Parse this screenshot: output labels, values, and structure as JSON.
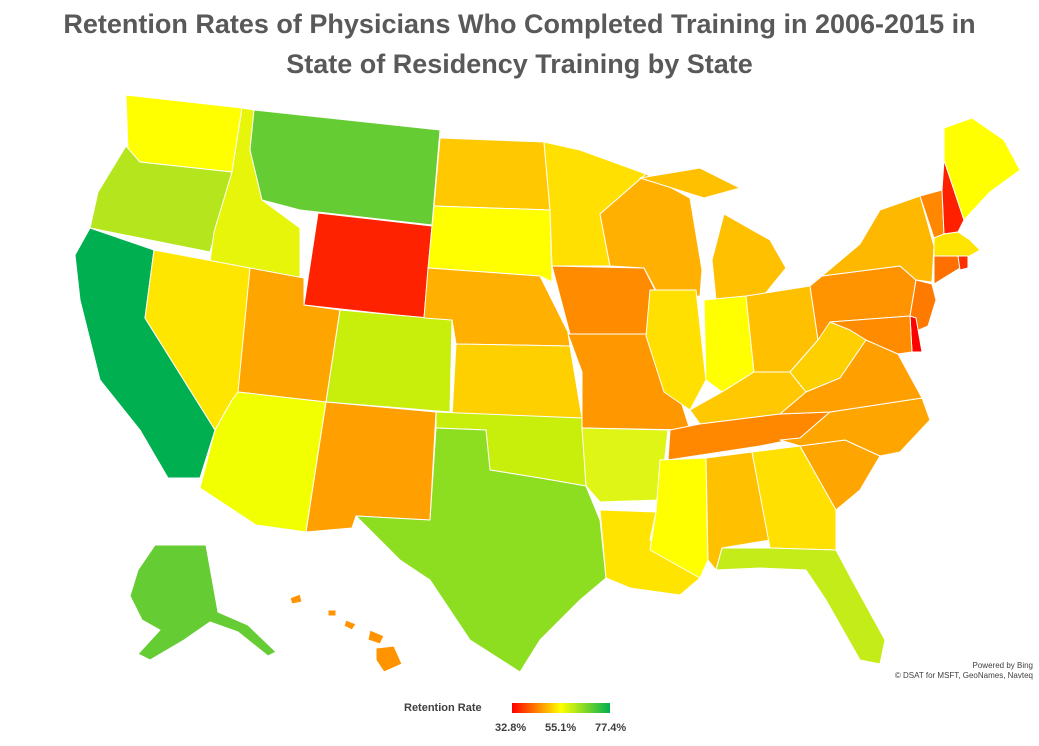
{
  "title_line1": "Retention Rates of Physicians Who Completed Training in 2006-2015 in",
  "title_line2": "State of Residency Training by State",
  "credit_line1": "Powered by Bing",
  "credit_line2": "© DSAT for MSFT, GeoNames, Navteq",
  "legend": {
    "title": "Retention Rate",
    "min_label": "32.8%",
    "mid_label": "55.1%",
    "max_label": "77.4%",
    "colors": [
      "#ff0000",
      "#ffff00",
      "#00b050"
    ]
  },
  "state_colors": {
    "WA": "#ffff00",
    "OR": "#b5e61d",
    "CA": "#00b050",
    "ID": "#e6f50a",
    "NV": "#ffe600",
    "MT": "#66cc33",
    "WY": "#ff2200",
    "UT": "#ffa500",
    "AZ": "#f2ff00",
    "CO": "#c8ee0c",
    "NM": "#ffa000",
    "ND": "#ffc800",
    "SD": "#ffff00",
    "NE": "#ffb000",
    "KS": "#ffd000",
    "OK": "#c8ee0c",
    "TX": "#8ddd20",
    "MN": "#ffe000",
    "IA": "#ff8c00",
    "MO": "#ff9800",
    "AR": "#dff516",
    "LA": "#ffe400",
    "WI": "#ffb000",
    "IL": "#ffe000",
    "MS": "#ffff00",
    "MI": "#ffc000",
    "IN": "#ffff00",
    "KY": "#ffc800",
    "TN": "#ff8800",
    "AL": "#ffc000",
    "OH": "#ffc000",
    "GA": "#ffe000",
    "FL": "#c4ec18",
    "SC": "#ffa500",
    "NC": "#ffa500",
    "WV": "#ffd000",
    "VA": "#ffa000",
    "PA": "#ff9400",
    "NY": "#ffb800",
    "ME": "#ffff00",
    "NH": "#ff2000",
    "VT": "#ff8800",
    "MA": "#ffe400",
    "CT": "#ff7000",
    "RI": "#ff3000",
    "NJ": "#ff7a00",
    "DE": "#ff0000",
    "MD": "#ff8c00",
    "AK": "#66cc33",
    "HI": "#ff9400"
  }
}
